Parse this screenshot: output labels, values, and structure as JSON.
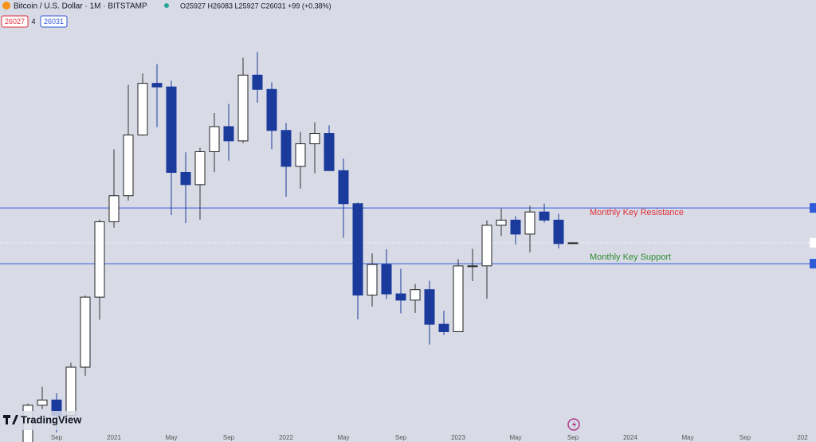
{
  "chart_data": {
    "type": "candlestick",
    "title": "Bitcoin / U.S. Dollar · 1M · BITSTAMP",
    "ohlc_header": "O25927 H26083 L25927 C26031 +99 (+0.38%)",
    "bid": "26027",
    "spread": "4",
    "ask": "26031",
    "logo": "TradingView",
    "log_scale": true,
    "ylim": [
      10000,
      90000
    ],
    "up_color": "#ffffff",
    "down_color": "#1a3a9c",
    "open": [
      9130,
      11350,
      11660,
      10780,
      13790,
      19720,
      28990,
      33110,
      45160,
      58790,
      57720,
      37300,
      35040,
      41460,
      47130,
      43820,
      61320,
      57000,
      46220,
      38470,
      43170,
      45520,
      37640,
      31790,
      19930,
      23300,
      20050,
      19420,
      20490,
      17170,
      16530,
      23130,
      23140,
      28470,
      29230,
      27220,
      30470,
      29230,
      25927
    ],
    "high": [
      11450,
      12470,
      12070,
      14100,
      19870,
      29300,
      41950,
      58350,
      61790,
      64850,
      59590,
      41330,
      42320,
      50500,
      52920,
      67000,
      69000,
      59100,
      47990,
      45850,
      48190,
      47440,
      40030,
      31980,
      24670,
      25200,
      22800,
      21100,
      21450,
      18400,
      23950,
      25250,
      29190,
      31000,
      29830,
      31430,
      31800,
      30190,
      26083
    ],
    "low": [
      8970,
      11120,
      9880,
      10540,
      13200,
      17570,
      28130,
      32300,
      45000,
      47000,
      30000,
      28800,
      29300,
      37330,
      39600,
      43320,
      53250,
      42000,
      32950,
      34320,
      37150,
      37690,
      26700,
      17600,
      18800,
      19540,
      18150,
      18200,
      15480,
      16260,
      16500,
      21400,
      19550,
      26940,
      25810,
      24800,
      28860,
      25300,
      25927
    ],
    "close": [
      11350,
      11660,
      10780,
      13790,
      19720,
      28990,
      33110,
      45160,
      58790,
      57720,
      37300,
      35040,
      41460,
      47130,
      43820,
      61320,
      57000,
      46220,
      38470,
      43170,
      45520,
      37640,
      31790,
      19930,
      23300,
      20050,
      19420,
      20490,
      17170,
      16530,
      23130,
      23140,
      28470,
      29230,
      27220,
      30470,
      29230,
      25930,
      26031
    ],
    "xticks": [
      {
        "value": 2,
        "label": "Sep"
      },
      {
        "value": 6,
        "label": "2021"
      },
      {
        "value": 10,
        "label": "May"
      },
      {
        "value": 14,
        "label": "Sep"
      },
      {
        "value": 18,
        "label": "2022"
      },
      {
        "value": 22,
        "label": "May"
      },
      {
        "value": 26,
        "label": "Sep"
      },
      {
        "value": 30,
        "label": "2023"
      },
      {
        "value": 34,
        "label": "May"
      },
      {
        "value": 38,
        "label": "Sep"
      },
      {
        "value": 42,
        "label": "2024"
      },
      {
        "value": 46,
        "label": "May"
      },
      {
        "value": 50,
        "label": "Sep"
      },
      {
        "value": 54,
        "label": "202"
      }
    ],
    "levels": [
      {
        "label": "Monthly Key Resistance",
        "value": 31100,
        "color": "#e0303a"
      },
      {
        "label": "Monthly Key Support",
        "value": 23400,
        "color": "#2e8b2e"
      }
    ],
    "line_color": "#2f5bd6",
    "last_price": 26031
  }
}
